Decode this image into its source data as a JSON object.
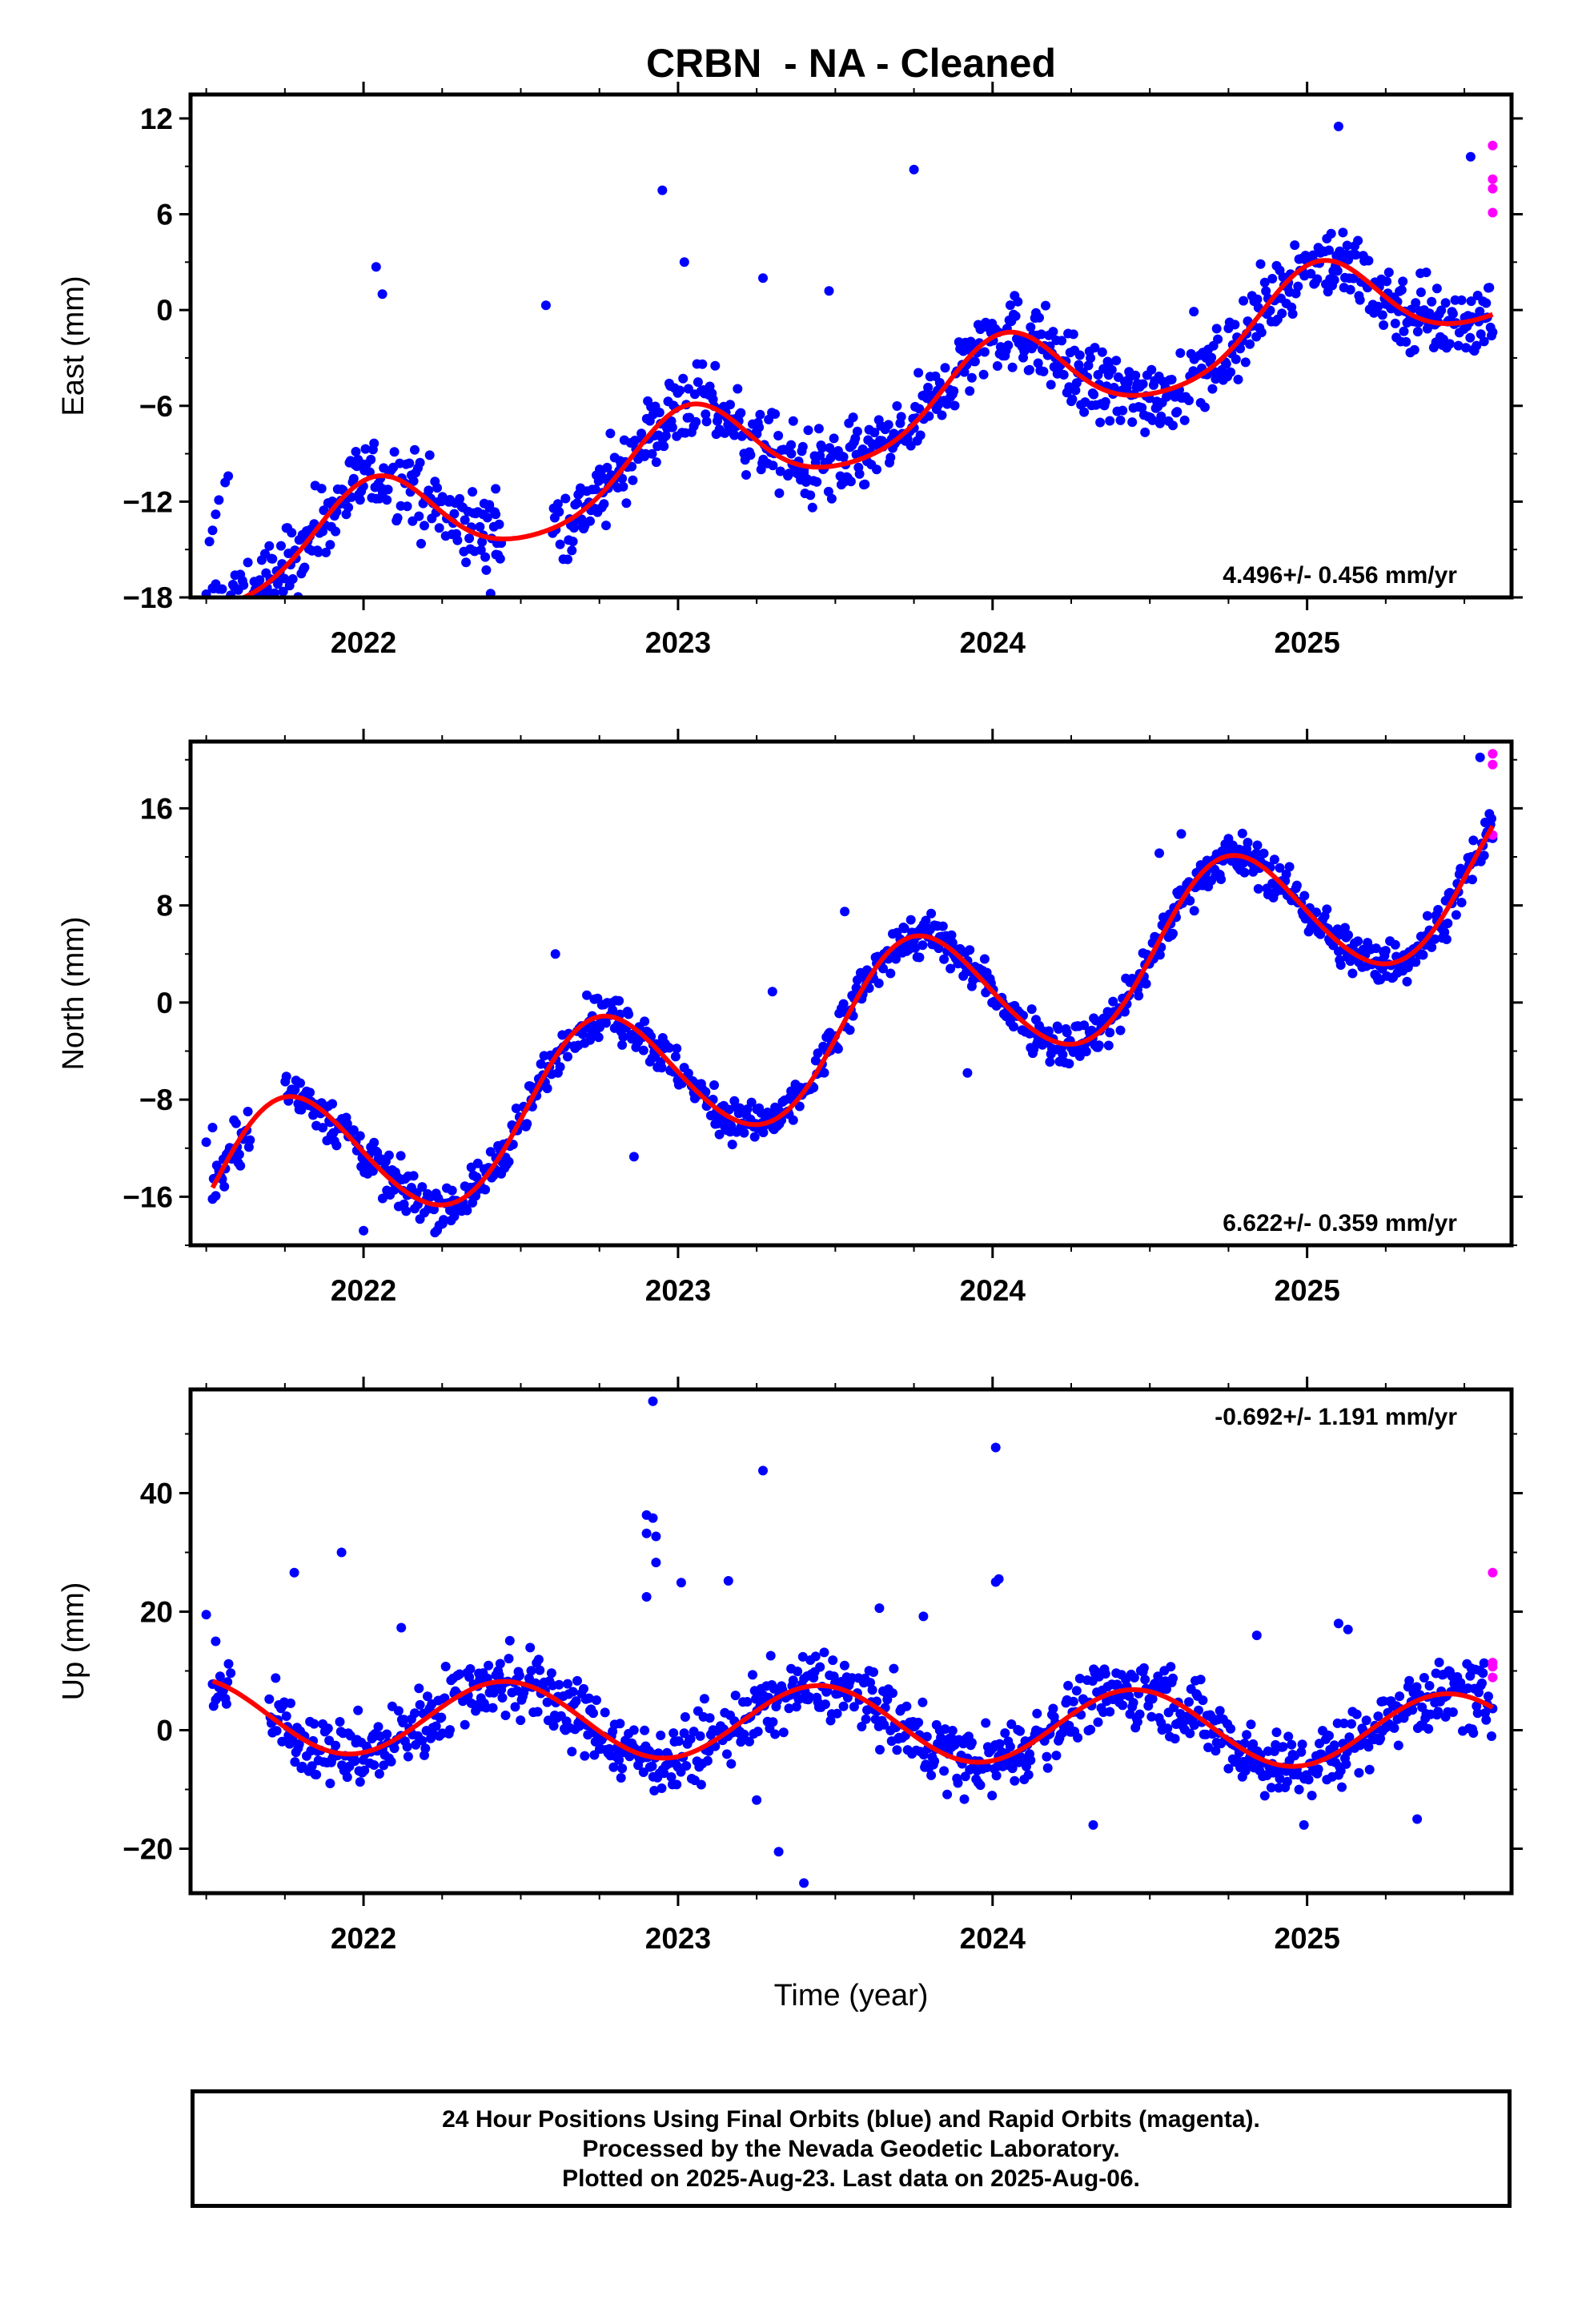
{
  "title": "CRBN  - NA - Cleaned",
  "xlabel": "Time (year)",
  "footer": {
    "line1": "24 Hour Positions Using Final Orbits (blue) and Rapid Orbits (magenta).",
    "line2": "Processed by the Nevada Geodetic Laboratory.",
    "line3": "Plotted on 2025-Aug-23. Last data on 2025-Aug-06."
  },
  "colors": {
    "final_orbits": "#0000ff",
    "rapid_orbits": "#ff00ff",
    "model_fit": "#ff0000",
    "frame": "#000000"
  },
  "chart_data": [
    {
      "type": "scatter",
      "ylabel": "East (mm)",
      "xlim": [
        2021.45,
        2025.65
      ],
      "ylim": [
        -18,
        13.5
      ],
      "xticks": [
        2022,
        2023,
        2024,
        2025
      ],
      "yticks": [
        -18,
        -12,
        -6,
        0,
        6,
        12
      ],
      "xtick_labels": [
        "2022",
        "2023",
        "2024",
        "2025"
      ],
      "ytick_labels": [
        "−18",
        "−12",
        "−6",
        "0",
        "6",
        "12"
      ],
      "rate_label": "4.496+/- 0.456 mm/yr",
      "rate_label_position": "bottom-right",
      "model": {
        "name": "fit",
        "start": 2021.52,
        "end": 2025.59,
        "offset": -7.25,
        "rate": 4.496,
        "reference_year": 2023.5,
        "annual_sin": 0.6,
        "annual_cos": 2.9,
        "semiannual_sin": 0.2,
        "semiannual_cos": 0.4
      },
      "gaps": [
        [
          2022.44,
          2022.6
        ]
      ],
      "scatter_noise": 1.7,
      "final_points": [
        [
          2021.5,
          -17.8
        ],
        [
          2021.51,
          -14.5
        ],
        [
          2021.52,
          -13.8
        ],
        [
          2021.53,
          -12.8
        ],
        [
          2021.54,
          -11.9
        ],
        [
          2021.56,
          -10.8
        ],
        [
          2021.57,
          -10.4
        ],
        [
          2022.04,
          2.7
        ],
        [
          2022.06,
          1.0
        ],
        [
          2022.38,
          -12.8
        ],
        [
          2022.4,
          -12.2
        ],
        [
          2022.42,
          -12.8
        ],
        [
          2022.42,
          -11.2
        ],
        [
          2022.58,
          0.3
        ],
        [
          2022.95,
          7.5
        ],
        [
          2023.02,
          3.0
        ],
        [
          2023.27,
          2.0
        ],
        [
          2023.36,
          -9.0
        ],
        [
          2023.4,
          -10.2
        ],
        [
          2023.48,
          1.2
        ],
        [
          2023.75,
          8.8
        ],
        [
          2024.37,
          -3.3
        ],
        [
          2024.64,
          -0.1
        ],
        [
          2025.1,
          11.5
        ],
        [
          2025.36,
          2.3
        ],
        [
          2025.52,
          9.6
        ]
      ],
      "rapid_points": [
        [
          2025.59,
          10.3
        ],
        [
          2025.59,
          8.2
        ],
        [
          2025.59,
          7.6
        ],
        [
          2025.59,
          6.1
        ]
      ]
    },
    {
      "type": "scatter",
      "ylabel": "North (mm)",
      "xlim": [
        2021.45,
        2025.65
      ],
      "ylim": [
        -20,
        21.5
      ],
      "xticks": [
        2022,
        2023,
        2024,
        2025
      ],
      "yticks": [
        -16,
        -8,
        0,
        8,
        16
      ],
      "xtick_labels": [
        "2022",
        "2023",
        "2024",
        "2025"
      ],
      "ytick_labels": [
        "−16",
        "−8",
        "0",
        "8",
        "16"
      ],
      "rate_label": "6.622+/- 0.359 mm/yr",
      "rate_label_position": "bottom-right",
      "model": {
        "name": "fit",
        "start": 2021.52,
        "end": 2025.59,
        "offset": -2.5,
        "rate": 6.622,
        "reference_year": 2023.5,
        "annual_sin": -6.1,
        "annual_cos": 0.3,
        "semiannual_sin": 0.3,
        "semiannual_cos": -0.2
      },
      "gaps": [
        [
          2021.64,
          2021.75
        ]
      ],
      "scatter_noise": 1.3,
      "final_points": [
        [
          2021.5,
          -11.5
        ],
        [
          2021.52,
          -10.3
        ],
        [
          2022.0,
          -18.8
        ],
        [
          2022.61,
          4.0
        ],
        [
          2022.86,
          -12.7
        ],
        [
          2023.3,
          0.9
        ],
        [
          2023.53,
          7.5
        ],
        [
          2023.92,
          -5.8
        ],
        [
          2024.53,
          12.3
        ],
        [
          2024.6,
          13.9
        ],
        [
          2025.22,
          3.4
        ],
        [
          2025.55,
          20.2
        ]
      ],
      "rapid_points": [
        [
          2025.59,
          20.5
        ],
        [
          2025.59,
          19.6
        ],
        [
          2025.59,
          13.8
        ]
      ]
    },
    {
      "type": "scatter",
      "ylabel": "Up (mm)",
      "xlim": [
        2021.45,
        2025.65
      ],
      "ylim": [
        -27.5,
        57.5
      ],
      "xticks": [
        2022,
        2023,
        2024,
        2025
      ],
      "yticks": [
        -20,
        0,
        20,
        40
      ],
      "xtick_labels": [
        "2022",
        "2023",
        "2024",
        "2025"
      ],
      "ytick_labels": [
        "−20",
        "0",
        "20",
        "40"
      ],
      "rate_label": "-0.692+/- 1.191 mm/yr",
      "rate_label_position": "top-right",
      "model": {
        "name": "fit",
        "start": 2021.52,
        "end": 2025.59,
        "offset": 1.2,
        "rate": -0.692,
        "reference_year": 2023.5,
        "annual_sin": 1.9,
        "annual_cos": -6.0,
        "semiannual_sin": 0.0,
        "semiannual_cos": 0.0
      },
      "gaps": [
        [
          2021.58,
          2021.7
        ]
      ],
      "scatter_noise": 4.2,
      "final_points": [
        [
          2021.5,
          19.5
        ],
        [
          2021.53,
          15.0
        ],
        [
          2021.78,
          26.6
        ],
        [
          2021.93,
          30.0
        ],
        [
          2022.12,
          17.3
        ],
        [
          2022.92,
          55.5
        ],
        [
          2022.9,
          36.3
        ],
        [
          2022.92,
          35.8
        ],
        [
          2022.9,
          33.2
        ],
        [
          2022.93,
          32.7
        ],
        [
          2022.9,
          22.5
        ],
        [
          2022.93,
          28.3
        ],
        [
          2023.01,
          24.9
        ],
        [
          2023.16,
          25.2
        ],
        [
          2023.27,
          43.8
        ],
        [
          2023.4,
          -25.8
        ],
        [
          2023.32,
          -20.5
        ],
        [
          2023.64,
          20.6
        ],
        [
          2023.78,
          19.2
        ],
        [
          2024.01,
          47.7
        ],
        [
          2024.02,
          25.5
        ],
        [
          2024.01,
          25.0
        ],
        [
          2024.32,
          -16.0
        ],
        [
          2024.84,
          16.0
        ],
        [
          2025.1,
          18.0
        ],
        [
          2025.13,
          17.0
        ],
        [
          2025.35,
          -15.0
        ],
        [
          2024.99,
          -16.0
        ],
        [
          2023.25,
          -11.8
        ]
      ],
      "rapid_points": [
        [
          2025.59,
          26.6
        ],
        [
          2025.59,
          11.4
        ],
        [
          2025.59,
          10.7
        ],
        [
          2025.59,
          8.9
        ]
      ]
    }
  ]
}
